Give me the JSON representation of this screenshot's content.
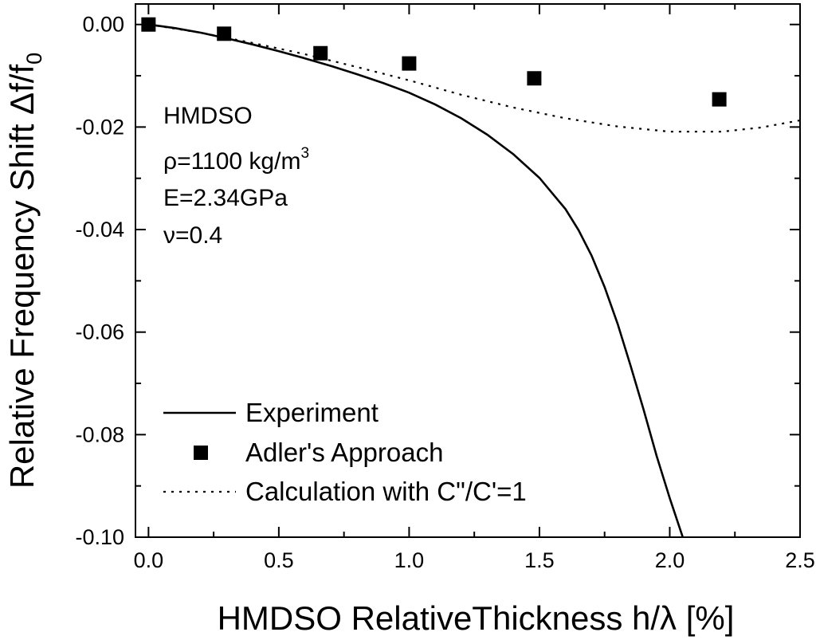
{
  "chart_data": {
    "type": "line",
    "title": "",
    "xlabel": "HMDSO RelativeThickness h/λ [%]",
    "ylabel_main": "Relative Frequency Shift Δf/f",
    "ylabel_sub": "0",
    "xlim": [
      -0.05,
      2.5
    ],
    "ylim": [
      -0.1,
      0.004
    ],
    "grid": false,
    "legend_position": "bottom-left",
    "x_ticks": [
      0.0,
      0.5,
      1.0,
      1.5,
      2.0,
      2.5
    ],
    "x_tick_labels": [
      "0.0",
      "0.5",
      "1.0",
      "1.5",
      "2.0",
      "2.5"
    ],
    "y_ticks": [
      0.0,
      -0.02,
      -0.04,
      -0.06,
      -0.08,
      -0.1
    ],
    "y_tick_labels": [
      "0.00",
      "-0.02",
      "-0.04",
      "-0.06",
      "-0.08",
      "-0.10"
    ],
    "series": [
      {
        "name": "Experiment",
        "style": "solid-line",
        "x": [
          0.0,
          0.1,
          0.2,
          0.3,
          0.4,
          0.5,
          0.6,
          0.7,
          0.8,
          0.9,
          1.0,
          1.1,
          1.2,
          1.3,
          1.4,
          1.5,
          1.6,
          1.65,
          1.7,
          1.75,
          1.8,
          1.85,
          1.9,
          1.95,
          2.0,
          2.05
        ],
        "y": [
          0.0,
          -0.0007,
          -0.0016,
          -0.0027,
          -0.0039,
          -0.0052,
          -0.0066,
          -0.0081,
          -0.0097,
          -0.0114,
          -0.0133,
          -0.0156,
          -0.0183,
          -0.0215,
          -0.0253,
          -0.0299,
          -0.036,
          -0.0401,
          -0.0451,
          -0.0512,
          -0.0584,
          -0.0666,
          -0.0752,
          -0.0842,
          -0.0924,
          -0.1
        ]
      },
      {
        "name": "Adler's Approach",
        "style": "square-marker",
        "x": [
          0.0,
          0.29,
          0.66,
          1.0,
          1.48,
          2.19
        ],
        "y": [
          0.0,
          -0.0018,
          -0.0056,
          -0.0076,
          -0.0105,
          -0.0146
        ]
      },
      {
        "name": "Calculation with C\"/C'=1",
        "style": "dotted-line",
        "x": [
          0.0,
          0.2,
          0.4,
          0.6,
          0.8,
          1.0,
          1.2,
          1.4,
          1.6,
          1.8,
          2.0,
          2.2,
          2.35,
          2.5
        ],
        "y": [
          0.0,
          -0.0016,
          -0.0036,
          -0.0058,
          -0.0083,
          -0.0109,
          -0.0137,
          -0.0162,
          -0.0183,
          -0.0199,
          -0.0209,
          -0.0209,
          -0.0201,
          -0.0187
        ]
      }
    ],
    "annotations": [
      {
        "text": "HMDSO"
      },
      {
        "text": "ρ=1100 kg/m",
        "sup": "3"
      },
      {
        "text": "E=2.34GPa"
      },
      {
        "text": "ν=0.4"
      }
    ]
  }
}
